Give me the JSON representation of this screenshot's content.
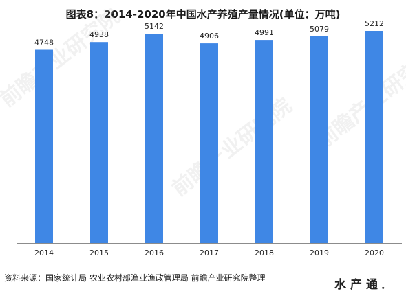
{
  "title": "图表8：2014-2020年中国水产养殖产量情况(单位：万吨)",
  "source": "资料来源：国家统计局 农业农村部渔业渔政管理局 前瞻产业研究院整理",
  "logo": {
    "text": "水产通",
    "mark": "。"
  },
  "watermark": {
    "text": "前瞻产业研究院"
  },
  "colors": {
    "bar": "#3f87e5",
    "axis": "#8c8c8c",
    "text": "#222222"
  },
  "chart_data": {
    "type": "bar",
    "title": "图表8：2014-2020年中国水产养殖产量情况(单位：万吨)",
    "categories": [
      "2014",
      "2015",
      "2016",
      "2017",
      "2018",
      "2019",
      "2020"
    ],
    "series": [
      {
        "values": [
          4748,
          4938,
          5142,
          4906,
          4991,
          5079,
          5212
        ]
      }
    ],
    "xlabel": "",
    "ylabel": "",
    "ylim": [
      0,
      5600
    ],
    "grid": false,
    "legend": "none",
    "data_labels": true
  }
}
